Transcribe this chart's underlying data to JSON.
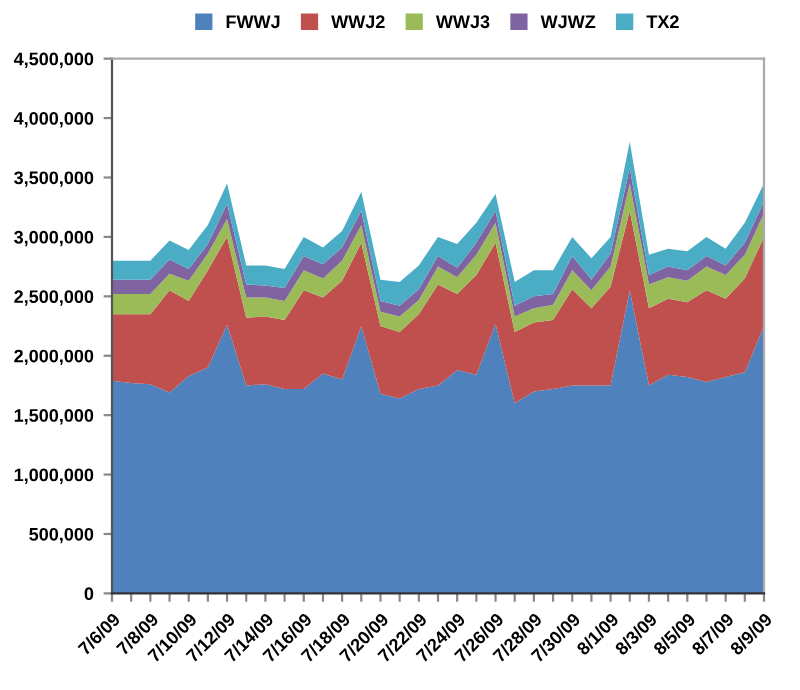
{
  "chart_data": {
    "type": "area",
    "stacked": true,
    "legend": "top",
    "grid": false,
    "categories": [
      "7/6/09",
      null,
      "7/8/09",
      null,
      "7/10/09",
      null,
      "7/12/09",
      null,
      "7/14/09",
      null,
      "7/16/09",
      null,
      "7/18/09",
      null,
      "7/20/09",
      null,
      "7/22/09",
      null,
      "7/24/09",
      null,
      "7/26/09",
      null,
      "7/28/09",
      null,
      "7/30/09",
      null,
      "8/1/09",
      null,
      "8/3/09",
      null,
      "8/5/09",
      null,
      "8/7/09",
      null,
      "8/9/09"
    ],
    "ylim": [
      0,
      4500000
    ],
    "yticks": [
      {
        "value": 0,
        "label": "0"
      },
      {
        "value": 500000,
        "label": "500,000"
      },
      {
        "value": 1000000,
        "label": "1,000,000"
      },
      {
        "value": 1500000,
        "label": "1,500,000"
      },
      {
        "value": 2000000,
        "label": "2,000,000"
      },
      {
        "value": 2500000,
        "label": "2,500,000"
      },
      {
        "value": 3000000,
        "label": "3,000,000"
      },
      {
        "value": 3500000,
        "label": "3,500,000"
      },
      {
        "value": 4000000,
        "label": "4,000,000"
      },
      {
        "value": 4500000,
        "label": "4,500,000"
      }
    ],
    "series": [
      {
        "name": "FWWJ",
        "color": "#4f81bd",
        "values": [
          1790000,
          1770000,
          1760000,
          1690000,
          1830000,
          1900000,
          2260000,
          1750000,
          1760000,
          1720000,
          1720000,
          1850000,
          1800000,
          2250000,
          1680000,
          1640000,
          1720000,
          1750000,
          1880000,
          1840000,
          2270000,
          1600000,
          1700000,
          1720000,
          1750000,
          1750000,
          1750000,
          2550000,
          1750000,
          1840000,
          1820000,
          1780000,
          1820000,
          1860000,
          2250000
        ]
      },
      {
        "name": "WWJ2",
        "color": "#c0504d",
        "values": [
          560000,
          580000,
          590000,
          860000,
          630000,
          820000,
          740000,
          570000,
          570000,
          580000,
          830000,
          640000,
          830000,
          700000,
          570000,
          560000,
          630000,
          850000,
          640000,
          840000,
          680000,
          600000,
          580000,
          580000,
          810000,
          650000,
          830000,
          670000,
          650000,
          640000,
          630000,
          770000,
          660000,
          790000,
          750000
        ]
      },
      {
        "name": "WWJ3",
        "color": "#9bbb59",
        "values": [
          170000,
          170000,
          170000,
          140000,
          170000,
          140000,
          150000,
          170000,
          160000,
          160000,
          170000,
          160000,
          170000,
          150000,
          120000,
          130000,
          120000,
          150000,
          140000,
          170000,
          170000,
          130000,
          120000,
          130000,
          160000,
          150000,
          170000,
          230000,
          200000,
          180000,
          180000,
          200000,
          200000,
          200000,
          200000
        ]
      },
      {
        "name": "WJWZ",
        "color": "#8064a2",
        "values": [
          120000,
          120000,
          120000,
          120000,
          100000,
          80000,
          130000,
          110000,
          100000,
          110000,
          120000,
          120000,
          110000,
          120000,
          90000,
          90000,
          90000,
          90000,
          80000,
          100000,
          100000,
          90000,
          100000,
          90000,
          120000,
          90000,
          110000,
          130000,
          80000,
          90000,
          90000,
          90000,
          80000,
          100000,
          100000
        ]
      },
      {
        "name": "TX2",
        "color": "#4bacc6",
        "values": [
          160000,
          160000,
          160000,
          160000,
          160000,
          160000,
          170000,
          160000,
          170000,
          160000,
          160000,
          140000,
          140000,
          160000,
          180000,
          200000,
          200000,
          160000,
          200000,
          170000,
          140000,
          200000,
          220000,
          200000,
          160000,
          180000,
          140000,
          220000,
          170000,
          150000,
          160000,
          160000,
          140000,
          170000,
          150000
        ]
      }
    ]
  }
}
